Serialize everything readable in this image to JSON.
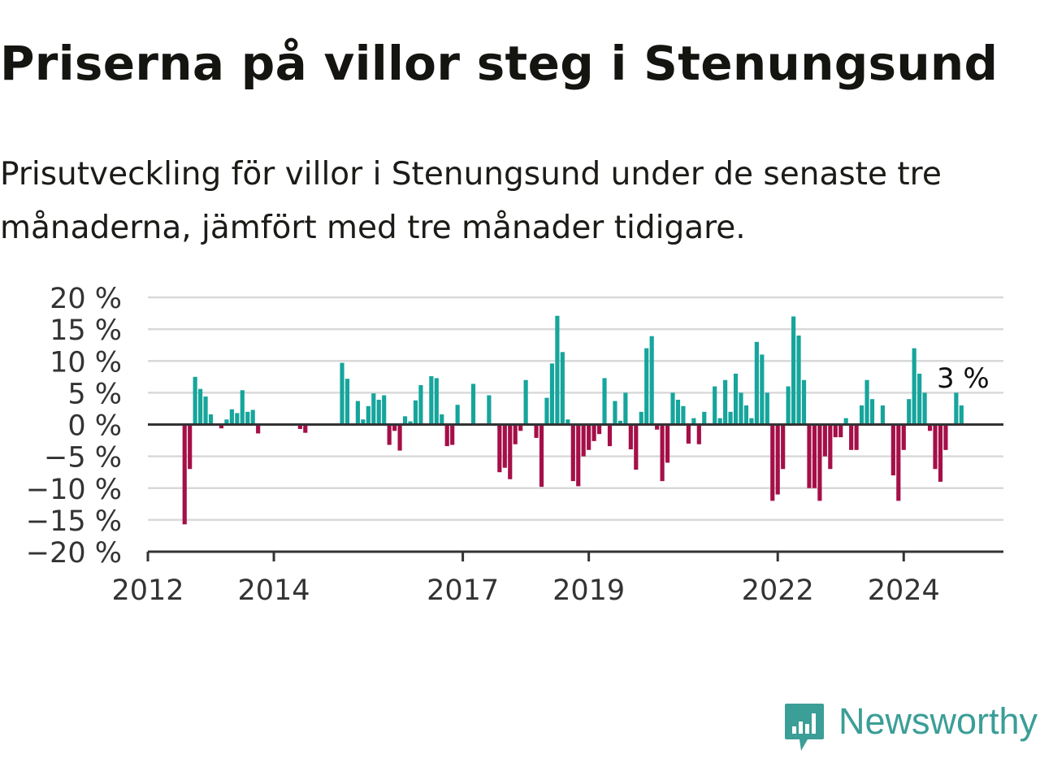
{
  "title": "Priserna på villor steg i Stenungsund",
  "subtitle": "Prisutveckling för villor i Stenungsund under de senaste tre månaderna, jämfört med tre månader tidigare.",
  "brand": {
    "name": "Newsworthy",
    "color": "#3b9e97"
  },
  "colors": {
    "positive": "#16a59c",
    "negative": "#a50f48",
    "grid": "#d9d9d9",
    "axis": "#333333"
  },
  "chart_data": {
    "type": "bar",
    "title": "Priserna på villor steg i Stenungsund",
    "xlabel": "",
    "ylabel": "",
    "ylim": [
      -20,
      20
    ],
    "y_ticks": [
      20,
      15,
      10,
      5,
      0,
      -5,
      -10,
      -15,
      -20
    ],
    "y_tick_labels": [
      "20 %",
      "15 %",
      "10 %",
      "5 %",
      "0 %",
      "−5 %",
      "−10 %",
      "−15 %",
      "−20 %"
    ],
    "x_tick_labels": [
      "2012",
      "2014",
      "2017",
      "2019",
      "2022",
      "2024"
    ],
    "x_tick_years": [
      2012,
      2014,
      2017,
      2019,
      2022,
      2024
    ],
    "x_range": [
      "2012-01",
      "2025-08"
    ],
    "grid": true,
    "legend": "none",
    "unit": "%",
    "last_value_label": "3 %",
    "start_month": "2012-01",
    "values": [
      null,
      null,
      null,
      null,
      null,
      null,
      null,
      -15.7,
      -7,
      7.5,
      5.6,
      4.4,
      1.6,
      0,
      -0.6,
      0.8,
      2.4,
      1.8,
      5.4,
      2,
      2.3,
      -1.4,
      0,
      0,
      0,
      0,
      0,
      0,
      0,
      -0.7,
      -1.3,
      0,
      0,
      0,
      0,
      0,
      0,
      9.7,
      7.2,
      0,
      3.7,
      0.8,
      2.9,
      4.9,
      3.9,
      4.6,
      -3.2,
      -1,
      -4.1,
      1.3,
      0.5,
      3.8,
      6.2,
      0,
      7.6,
      7.3,
      1.6,
      -3.4,
      -3.2,
      3.1,
      0,
      0,
      6.4,
      0,
      0,
      4.6,
      0,
      -7.5,
      -6.8,
      -8.6,
      -3.1,
      -1,
      7,
      0,
      -2.1,
      -9.8,
      4.2,
      9.6,
      17.1,
      11.4,
      0.8,
      -8.9,
      -9.7,
      -5,
      -4,
      -2.6,
      -1.5,
      7.3,
      -3.4,
      3.7,
      0.6,
      5,
      -3.9,
      -7.1,
      2,
      12,
      13.9,
      -0.8,
      -8.9,
      -6,
      5,
      3.9,
      2.9,
      -3,
      1,
      -3.1,
      2,
      0,
      6,
      1,
      7,
      2,
      8,
      5,
      3,
      1,
      13,
      11,
      5,
      -12,
      -11,
      -7,
      6,
      17,
      14,
      7,
      -10,
      -10,
      -12,
      -5,
      -7,
      -2,
      -2,
      1,
      -4,
      -4,
      3,
      7,
      4,
      0,
      3,
      0,
      -8,
      -12,
      -4,
      4,
      12,
      8,
      5,
      -1,
      -7,
      -9,
      -4,
      0,
      5,
      3
    ]
  }
}
